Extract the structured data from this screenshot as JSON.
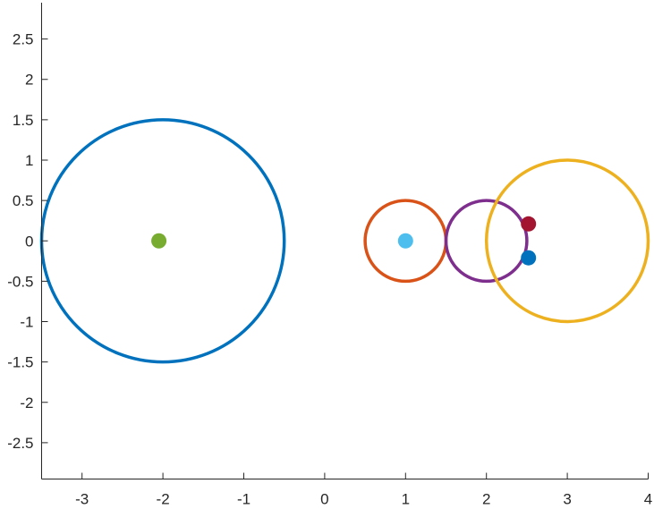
{
  "chart_data": {
    "type": "scatter",
    "title": "",
    "xlabel": "",
    "ylabel": "",
    "xlim": [
      -3.5,
      4
    ],
    "ylim": [
      -2.95,
      2.95
    ],
    "grid": false,
    "legend": "none",
    "xticks": [
      {
        "value": -3,
        "label": "-3"
      },
      {
        "value": -2,
        "label": "-2"
      },
      {
        "value": -1,
        "label": "-1"
      },
      {
        "value": 0,
        "label": "0"
      },
      {
        "value": 1,
        "label": "1"
      },
      {
        "value": 2,
        "label": "2"
      },
      {
        "value": 3,
        "label": "3"
      },
      {
        "value": 4,
        "label": "4"
      }
    ],
    "yticks": [
      {
        "value": 2.5,
        "label": "2.5"
      },
      {
        "value": 2,
        "label": "2"
      },
      {
        "value": 1.5,
        "label": "1.5"
      },
      {
        "value": 1,
        "label": "1"
      },
      {
        "value": 0.5,
        "label": "0.5"
      },
      {
        "value": 0,
        "label": "0"
      },
      {
        "value": -0.5,
        "label": "-0.5"
      },
      {
        "value": -1,
        "label": "-1"
      },
      {
        "value": -1.5,
        "label": "-1.5"
      },
      {
        "value": -2,
        "label": "-2"
      },
      {
        "value": -2.5,
        "label": "-2.5"
      }
    ],
    "circles": [
      {
        "cx": -2,
        "cy": 0,
        "r": 1.5,
        "color": "#0072BD"
      },
      {
        "cx": 1,
        "cy": 0,
        "r": 0.5,
        "color": "#D95319"
      },
      {
        "cx": 2,
        "cy": 0,
        "r": 0.5,
        "color": "#7E2F8E"
      },
      {
        "cx": 3,
        "cy": 0,
        "r": 1,
        "color": "#EDB120"
      }
    ],
    "points": [
      {
        "x": -2.05,
        "y": 0,
        "color": "#77AC30"
      },
      {
        "x": 1,
        "y": 0,
        "color": "#4DBEEE"
      },
      {
        "x": 2.52,
        "y": 0.21,
        "color": "#A2142F"
      },
      {
        "x": 2.52,
        "y": -0.21,
        "color": "#0072BD"
      }
    ]
  }
}
